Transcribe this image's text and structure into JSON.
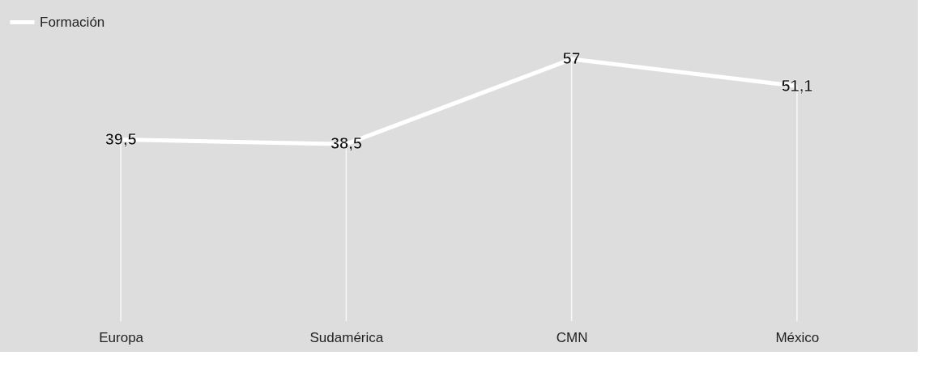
{
  "chart_data": {
    "type": "line",
    "categories": [
      "Europa",
      "Sudamérica",
      "CMN",
      "México"
    ],
    "series": [
      {
        "name": "Formación",
        "color": "#ffffff",
        "values": [
          39.5,
          38.5,
          57,
          51.1
        ],
        "value_labels": [
          "39,5",
          "38,5",
          "57",
          "51,1"
        ]
      }
    ],
    "legend": "top",
    "grid": "x",
    "marker": "none",
    "line_style": "solid"
  }
}
